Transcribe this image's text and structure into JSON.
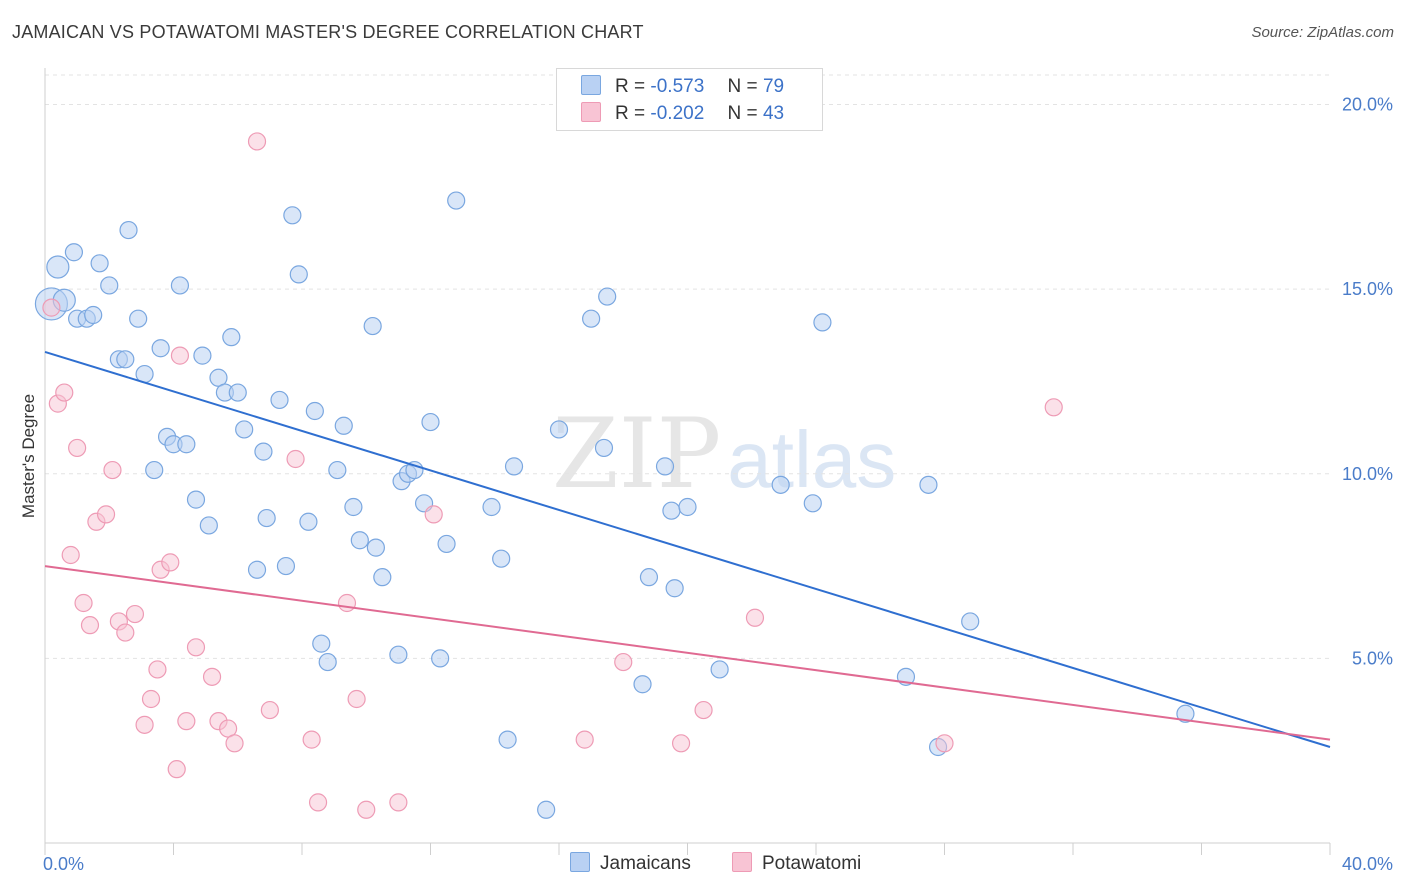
{
  "title": "JAMAICAN VS POTAWATOMI MASTER'S DEGREE CORRELATION CHART",
  "source": "Source: ZipAtlas.com",
  "watermark": {
    "zip": "ZIP",
    "atlas": "atlas"
  },
  "legend": {
    "r_label": "R =",
    "n_label": "N =",
    "jamaicans": {
      "r": "-0.573",
      "n": "79"
    },
    "potawatomi": {
      "r": "-0.202",
      "n": "43"
    }
  },
  "bottom_legend": {
    "jamaicans": "Jamaicans",
    "potawatomi": "Potawatomi"
  },
  "colors": {
    "jamaicans_fill": "#b9d1f3",
    "jamaicans_stroke": "#7aa7e0",
    "jamaicans_line": "#2f6fd0",
    "potawatomi_fill": "#f8c4d4",
    "potawatomi_stroke": "#ee9bb5",
    "potawatomi_line": "#e06a92",
    "axis_text": "#4a7cc9"
  },
  "chart_data": {
    "type": "scatter",
    "title": "JAMAICAN VS POTAWATOMI MASTER'S DEGREE CORRELATION CHART",
    "xlabel": "",
    "ylabel": "Master's Degree",
    "xlim": [
      0,
      40
    ],
    "ylim": [
      0,
      20.8
    ],
    "x_tick_labels": [
      "0.0%",
      "40.0%"
    ],
    "y_ticks": [
      5,
      10,
      15,
      20
    ],
    "y_tick_labels": [
      "5.0%",
      "10.0%",
      "15.0%",
      "20.0%"
    ],
    "grid": true,
    "series": [
      {
        "name": "Jamaicans",
        "r": -0.573,
        "n": 79,
        "trend": {
          "x": [
            0,
            40
          ],
          "y": [
            13.3,
            2.6
          ]
        },
        "points": [
          [
            0.2,
            14.6
          ],
          [
            0.4,
            15.6
          ],
          [
            0.6,
            14.7
          ],
          [
            0.9,
            16.0
          ],
          [
            1.0,
            14.2
          ],
          [
            1.3,
            14.2
          ],
          [
            1.5,
            14.3
          ],
          [
            1.7,
            15.7
          ],
          [
            2.0,
            15.1
          ],
          [
            2.3,
            13.1
          ],
          [
            2.5,
            13.1
          ],
          [
            2.6,
            16.6
          ],
          [
            2.9,
            14.2
          ],
          [
            3.1,
            12.7
          ],
          [
            3.4,
            10.1
          ],
          [
            3.6,
            13.4
          ],
          [
            3.8,
            11.0
          ],
          [
            4.0,
            10.8
          ],
          [
            4.2,
            15.1
          ],
          [
            4.4,
            10.8
          ],
          [
            4.7,
            9.3
          ],
          [
            4.9,
            13.2
          ],
          [
            5.1,
            8.6
          ],
          [
            5.4,
            12.6
          ],
          [
            5.6,
            12.2
          ],
          [
            5.8,
            13.7
          ],
          [
            6.0,
            12.2
          ],
          [
            6.2,
            11.2
          ],
          [
            6.6,
            7.4
          ],
          [
            6.8,
            10.6
          ],
          [
            6.9,
            8.8
          ],
          [
            7.3,
            12.0
          ],
          [
            7.5,
            7.5
          ],
          [
            7.7,
            17.0
          ],
          [
            7.9,
            15.4
          ],
          [
            8.2,
            8.7
          ],
          [
            8.4,
            11.7
          ],
          [
            8.6,
            5.4
          ],
          [
            8.8,
            4.9
          ],
          [
            9.1,
            10.1
          ],
          [
            9.3,
            11.3
          ],
          [
            9.6,
            9.1
          ],
          [
            9.8,
            8.2
          ],
          [
            10.2,
            14.0
          ],
          [
            10.3,
            8.0
          ],
          [
            10.5,
            7.2
          ],
          [
            11.0,
            5.1
          ],
          [
            11.1,
            9.8
          ],
          [
            11.3,
            10.0
          ],
          [
            11.5,
            10.1
          ],
          [
            11.8,
            9.2
          ],
          [
            12.0,
            11.4
          ],
          [
            12.3,
            5.0
          ],
          [
            12.5,
            8.1
          ],
          [
            12.8,
            17.4
          ],
          [
            13.9,
            9.1
          ],
          [
            14.2,
            7.7
          ],
          [
            14.4,
            2.8
          ],
          [
            14.6,
            10.2
          ],
          [
            15.6,
            0.9
          ],
          [
            16.0,
            11.2
          ],
          [
            17.0,
            14.2
          ],
          [
            17.4,
            10.7
          ],
          [
            17.5,
            14.8
          ],
          [
            18.6,
            4.3
          ],
          [
            18.8,
            7.2
          ],
          [
            19.3,
            10.2
          ],
          [
            19.5,
            9.0
          ],
          [
            19.6,
            6.9
          ],
          [
            20.0,
            9.1
          ],
          [
            21.0,
            4.7
          ],
          [
            22.9,
            9.7
          ],
          [
            23.9,
            9.2
          ],
          [
            24.2,
            14.1
          ],
          [
            26.8,
            4.5
          ],
          [
            27.5,
            9.7
          ],
          [
            27.8,
            2.6
          ],
          [
            28.8,
            6.0
          ],
          [
            35.5,
            3.5
          ]
        ]
      },
      {
        "name": "Potawatomi",
        "r": -0.202,
        "n": 43,
        "trend": {
          "x": [
            0,
            40
          ],
          "y": [
            7.5,
            2.8
          ]
        },
        "points": [
          [
            0.2,
            14.5
          ],
          [
            0.4,
            11.9
          ],
          [
            0.6,
            12.2
          ],
          [
            0.8,
            7.8
          ],
          [
            1.0,
            10.7
          ],
          [
            1.2,
            6.5
          ],
          [
            1.4,
            5.9
          ],
          [
            1.6,
            8.7
          ],
          [
            1.9,
            8.9
          ],
          [
            2.1,
            10.1
          ],
          [
            2.3,
            6.0
          ],
          [
            2.5,
            5.7
          ],
          [
            2.8,
            6.2
          ],
          [
            3.1,
            3.2
          ],
          [
            3.3,
            3.9
          ],
          [
            3.5,
            4.7
          ],
          [
            3.6,
            7.4
          ],
          [
            3.9,
            7.6
          ],
          [
            4.1,
            2.0
          ],
          [
            4.2,
            13.2
          ],
          [
            4.4,
            3.3
          ],
          [
            4.7,
            5.3
          ],
          [
            5.2,
            4.5
          ],
          [
            5.4,
            3.3
          ],
          [
            5.7,
            3.1
          ],
          [
            5.9,
            2.7
          ],
          [
            6.6,
            19.0
          ],
          [
            7.0,
            3.6
          ],
          [
            7.8,
            10.4
          ],
          [
            8.3,
            2.8
          ],
          [
            8.5,
            1.1
          ],
          [
            9.4,
            6.5
          ],
          [
            9.7,
            3.9
          ],
          [
            10.0,
            0.9
          ],
          [
            11.0,
            1.1
          ],
          [
            12.1,
            8.9
          ],
          [
            16.8,
            2.8
          ],
          [
            18.0,
            4.9
          ],
          [
            19.8,
            2.7
          ],
          [
            20.5,
            3.6
          ],
          [
            22.1,
            6.1
          ],
          [
            28.0,
            2.7
          ],
          [
            31.4,
            11.8
          ]
        ]
      }
    ]
  }
}
